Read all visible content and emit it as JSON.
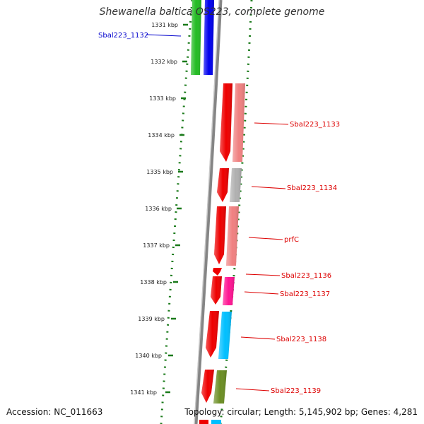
{
  "title": "Shewanella baltica OS223, complete genome",
  "accession_label": "Accession: NC_011663",
  "topology_label": "Topology: circular; Length: 5,145,902 bp; Genes: 4,281",
  "colors": {
    "backbone": "#808080",
    "tick": "#1a7a1a",
    "dots": "#1a7a1a",
    "selected_label": "#0000cc",
    "gene_label": "#dd0000"
  },
  "ruler": {
    "unit": "kbp",
    "ticks": [
      "1331 kbp",
      "1332 kbp",
      "1333 kbp",
      "1334 kbp",
      "1335 kbp",
      "1336 kbp",
      "1337 kbp",
      "1338 kbp",
      "1339 kbp",
      "1340 kbp",
      "1341 kbp"
    ]
  },
  "genes": [
    {
      "name": "Sbal223_1132",
      "cog_color": "#0000ee",
      "strand_color": "#22bb22",
      "highlight": true
    },
    {
      "name": "Sbal223_1133",
      "cog_color": "#f08080",
      "strand_color": "#ee0000"
    },
    {
      "name": "Sbal223_1134",
      "cog_color": "#b0b0b0",
      "strand_color": "#ee0000"
    },
    {
      "name": "prfC",
      "cog_color": "#f08080",
      "strand_color": "#ee0000"
    },
    {
      "name": "Sbal223_1136",
      "cog_color": "",
      "strand_color": "#ee0000"
    },
    {
      "name": "Sbal223_1137",
      "cog_color": "#ff1493",
      "strand_color": "#ee0000"
    },
    {
      "name": "Sbal223_1138",
      "cog_color": "#00bfff",
      "strand_color": "#ee0000"
    },
    {
      "name": "Sbal223_1139",
      "cog_color": "#6b8e23",
      "strand_color": "#ee0000"
    }
  ]
}
